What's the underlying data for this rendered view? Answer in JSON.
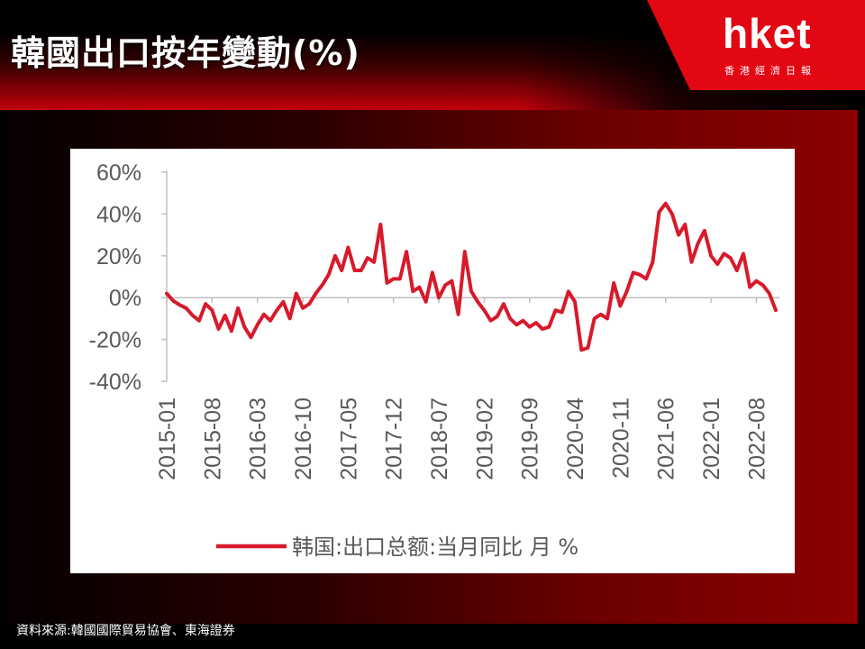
{
  "header": {
    "title": "韓國出口按年變動(%)"
  },
  "logo": {
    "main": "hket",
    "sub": "香港經濟日報"
  },
  "source": "資料來源:韓國國際貿易協會、東海證券",
  "colors": {
    "accent": "#c2000b",
    "series": "#d71a2b",
    "axis": "#bfbfbf",
    "tick_text": "#595959"
  },
  "chart_data": {
    "type": "line",
    "title": "",
    "xlabel": "",
    "ylabel": "",
    "ylim": [
      -40,
      60
    ],
    "yticks": [
      60,
      40,
      20,
      0,
      -20,
      -40
    ],
    "ytick_labels": [
      "60%",
      "40%",
      "20%",
      "0%",
      "-20%",
      "-40%"
    ],
    "xtick_labels": [
      "2015-01",
      "2015-08",
      "2016-03",
      "2016-10",
      "2017-05",
      "2017-12",
      "2018-07",
      "2019-02",
      "2019-09",
      "2020-04",
      "2020-11",
      "2021-06",
      "2022-01",
      "2022-08"
    ],
    "grid": false,
    "legend": "bottom",
    "series": [
      {
        "name": "韩国:出口总额:当月同比 月 %",
        "start": "2015-01",
        "values": [
          2,
          -1.5,
          -3.5,
          -5,
          -8.5,
          -11,
          -3,
          -6,
          -15,
          -8.5,
          -16,
          -5,
          -14,
          -19,
          -13,
          -8,
          -11,
          -6,
          -2,
          -10,
          2,
          -5,
          -3,
          2,
          6,
          11,
          20,
          13,
          24,
          13,
          13,
          19,
          17,
          35,
          7,
          9,
          9,
          22,
          3,
          5,
          -2,
          12,
          0,
          6,
          8,
          -8,
          22,
          3,
          -2,
          -6,
          -11,
          -9,
          -3,
          -10,
          -13,
          -11,
          -14,
          -12,
          -15,
          -14,
          -6,
          -7,
          3,
          -2,
          -25,
          -24,
          -10,
          -8,
          -10,
          7,
          -4,
          3,
          12,
          11,
          9,
          17,
          41,
          45,
          40,
          30,
          35,
          17,
          26,
          32,
          20,
          16,
          21,
          19,
          13,
          21,
          5,
          8,
          6,
          2,
          -6
        ]
      }
    ]
  }
}
